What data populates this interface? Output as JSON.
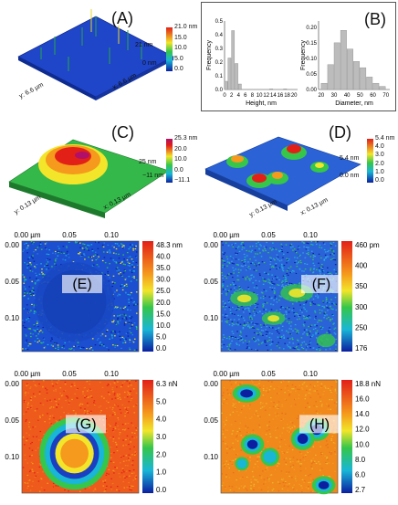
{
  "panels": {
    "A": {
      "label": "(A)",
      "z_top": "21 nm",
      "z_bottom": "0 nm",
      "y_axis": "y: 6.6 µm",
      "x_axis": "x: 6.6 µm",
      "colorbar": [
        "21.0 nm",
        "15.0",
        "10.0",
        "5.0",
        "0.0"
      ]
    },
    "B": {
      "label": "(B)"
    },
    "C": {
      "label": "(C)",
      "z_top": "25 nm",
      "z_bottom": "−11 nm",
      "y_axis": "y: 0.13 µm",
      "x_axis": "x: 0.13 µm",
      "colorbar": [
        "25.3 nm",
        "20.0",
        "10.0",
        "0.0",
        "−11.1"
      ]
    },
    "D": {
      "label": "(D)",
      "z_top": "5.4 nm",
      "z_bottom": "0.0 nm",
      "y_axis": "y: 0.13 µm",
      "x_axis": "x: 0.13 µm",
      "colorbar": [
        "5.4 nm",
        "4.0",
        "3.0",
        "2.0",
        "1.0",
        "0.0"
      ]
    },
    "E": {
      "label": "(E)",
      "colorbar": [
        "48.3 nm",
        "40.0",
        "35.0",
        "30.0",
        "25.0",
        "20.0",
        "15.0",
        "10.0",
        "5.0",
        "0.0"
      ]
    },
    "F": {
      "label": "(F)",
      "colorbar": [
        "460 pm",
        "400",
        "350",
        "300",
        "250",
        "176"
      ]
    },
    "G": {
      "label": "(G)",
      "colorbar": [
        "6.3 nN",
        "5.0",
        "4.0",
        "3.0",
        "2.0",
        "1.0",
        "0.0"
      ]
    },
    "H": {
      "label": "(H)",
      "colorbar": [
        "18.8 nN",
        "16.0",
        "14.0",
        "12.0",
        "10.0",
        "8.0",
        "6.0",
        "2.7"
      ]
    },
    "map_x_ticks": [
      "0.00 µm",
      "0.05",
      "0.10"
    ],
    "map_y_ticks": [
      "0.00",
      "0.05",
      "0.10"
    ]
  },
  "chart_data": [
    {
      "type": "bar",
      "panel": "B-left",
      "xlabel": "Height, nm",
      "ylabel": "Frequency",
      "xticks": [
        "0",
        "2",
        "4",
        "6",
        "8",
        "10",
        "12",
        "14",
        "16",
        "18",
        "20"
      ],
      "yticks": [
        "0.0",
        "0.1",
        "0.2",
        "0.3",
        "0.4",
        "0.5"
      ],
      "ylim": [
        0,
        0.5
      ],
      "xlim": [
        0,
        21
      ],
      "bin_width": 1,
      "x": [
        0.5,
        1.5,
        2.5,
        3.5,
        4.5,
        13.5,
        17.5
      ],
      "values": [
        0.06,
        0.23,
        0.43,
        0.19,
        0.04,
        0.005,
        0.005
      ]
    },
    {
      "type": "bar",
      "panel": "B-right",
      "xlabel": "Diameter, nm",
      "ylabel": "Frequency",
      "xticks": [
        "20",
        "30",
        "40",
        "50",
        "60",
        "70"
      ],
      "yticks": [
        "0.00",
        "0.05",
        "0.10",
        "0.15",
        "0.20"
      ],
      "ylim": [
        0,
        0.22
      ],
      "xlim": [
        18,
        73
      ],
      "bin_width": 5,
      "x": [
        22.5,
        27.5,
        32.5,
        37.5,
        42.5,
        47.5,
        52.5,
        57.5,
        62.5,
        67.5
      ],
      "values": [
        0.02,
        0.08,
        0.15,
        0.19,
        0.13,
        0.09,
        0.07,
        0.04,
        0.02,
        0.01
      ]
    }
  ],
  "colors": {
    "scale": [
      "#0b1fa0",
      "#1a55d8",
      "#19b6d6",
      "#35c64a",
      "#f2e52a",
      "#f59a1c",
      "#e22018"
    ],
    "bar": "#bcbcbc"
  }
}
